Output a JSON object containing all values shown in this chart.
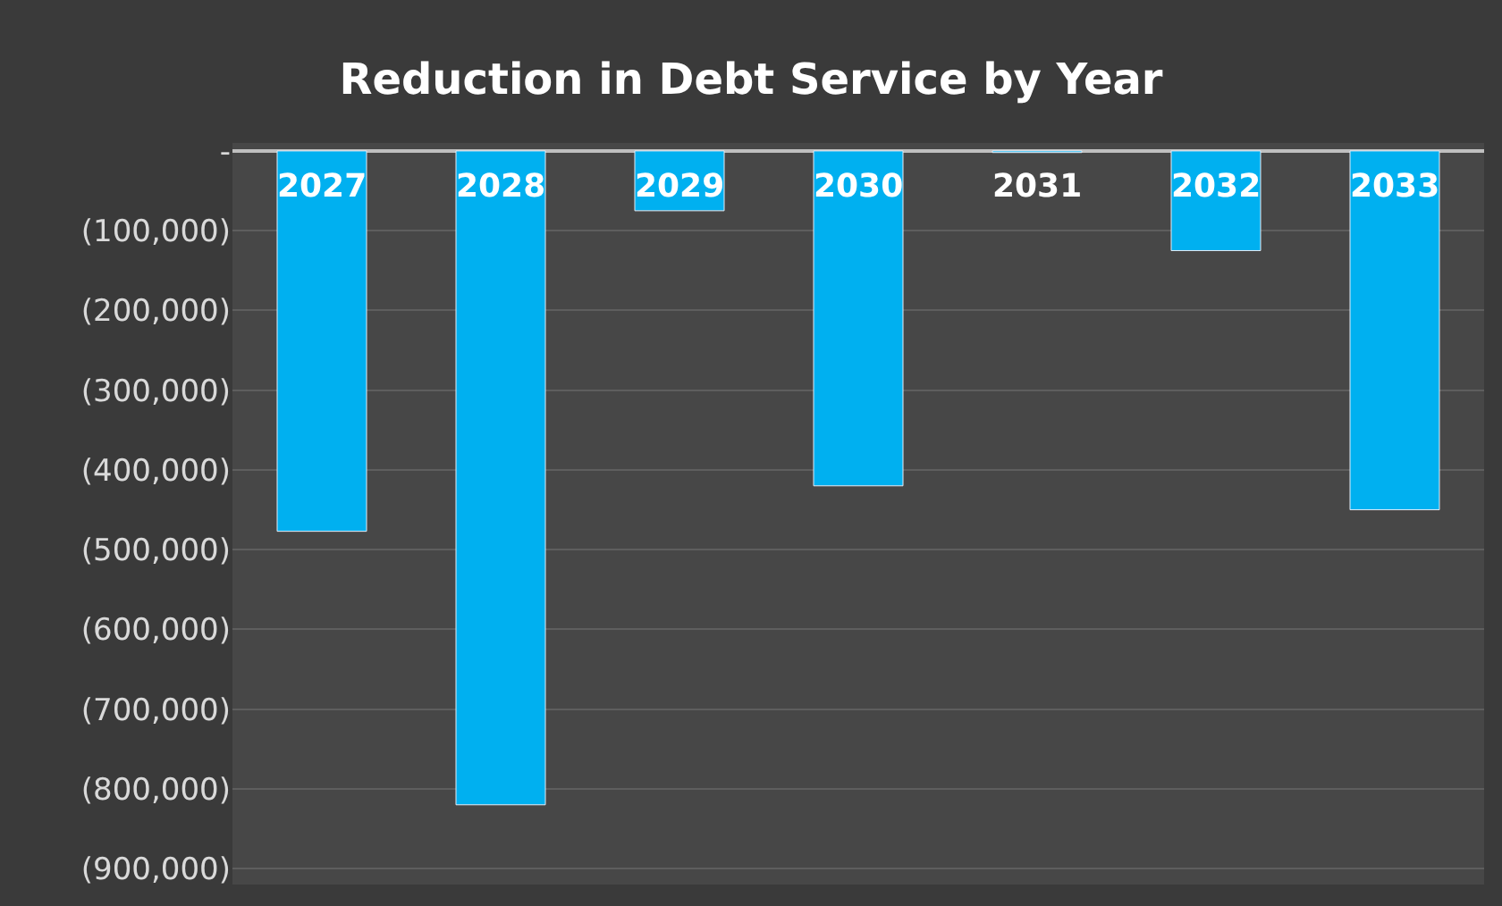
{
  "chart_data": {
    "type": "bar",
    "title": "Reduction in Debt Service by Year",
    "categories": [
      "2027",
      "2028",
      "2029",
      "2030",
      "2031",
      "2032",
      "2033"
    ],
    "values": [
      -477000,
      -820000,
      -75000,
      -420000,
      -2000,
      -125000,
      -450000
    ],
    "color": "#00b0f0",
    "ylim": [
      -920000,
      10000
    ],
    "yticks": [
      {
        "value": 0,
        "label": "-"
      },
      {
        "value": -100000,
        "label": "(100,000)"
      },
      {
        "value": -200000,
        "label": "(200,000)"
      },
      {
        "value": -300000,
        "label": "(300,000)"
      },
      {
        "value": -400000,
        "label": "(400,000)"
      },
      {
        "value": -500000,
        "label": "(500,000)"
      },
      {
        "value": -600000,
        "label": "(600,000)"
      },
      {
        "value": -700000,
        "label": "(700,000)"
      },
      {
        "value": -800000,
        "label": "(800,000)"
      },
      {
        "value": -900000,
        "label": "(900,000)"
      }
    ],
    "grid": "y"
  }
}
